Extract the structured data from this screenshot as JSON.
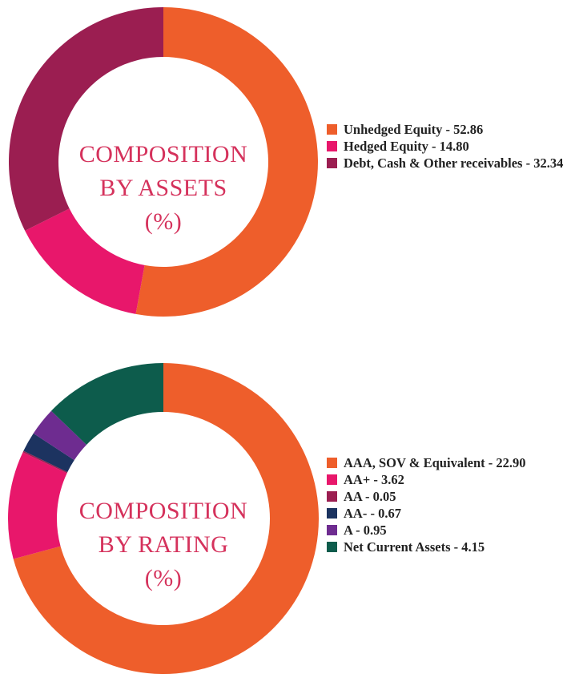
{
  "chart_data": [
    {
      "type": "pie",
      "style": "donut",
      "center_label": [
        "COMPOSITION",
        "BY ASSETS",
        "(%)"
      ],
      "legend_placement": "right",
      "slices": [
        {
          "label": "Unhedged Equity - 52.86",
          "name": "Unhedged Equity",
          "value": 52.86,
          "color": "#ee5e2b"
        },
        {
          "label": "Hedged Equity - 14.80",
          "name": "Hedged Equity",
          "value": 14.8,
          "color": "#e8176b"
        },
        {
          "label": "Debt, Cash & Other receivables - 32.34",
          "name": "Debt, Cash & Other receivables",
          "value": 32.34,
          "color": "#9b1e51"
        }
      ]
    },
    {
      "type": "pie",
      "style": "donut",
      "center_label": [
        "COMPOSITION",
        "BY RATING",
        "(%)"
      ],
      "legend_placement": "right",
      "slices": [
        {
          "label": "AAA, SOV & Equivalent - 22.90",
          "name": "AAA, SOV & Equivalent",
          "value": 22.9,
          "color": "#ee5e2b"
        },
        {
          "label": "AA+ - 3.62",
          "name": "AA+",
          "value": 3.62,
          "color": "#e8176b"
        },
        {
          "label": "AA - 0.05",
          "name": "AA",
          "value": 0.05,
          "color": "#9b1e51"
        },
        {
          "label": "AA- - 0.67",
          "name": "AA-",
          "value": 0.67,
          "color": "#1c3360"
        },
        {
          "label": "A - 0.95",
          "name": "A",
          "value": 0.95,
          "color": "#6e2c90"
        },
        {
          "label": "Net Current Assets - 4.15",
          "name": "Net Current Assets",
          "value": 4.15,
          "color": "#0d5c4c"
        }
      ]
    }
  ]
}
